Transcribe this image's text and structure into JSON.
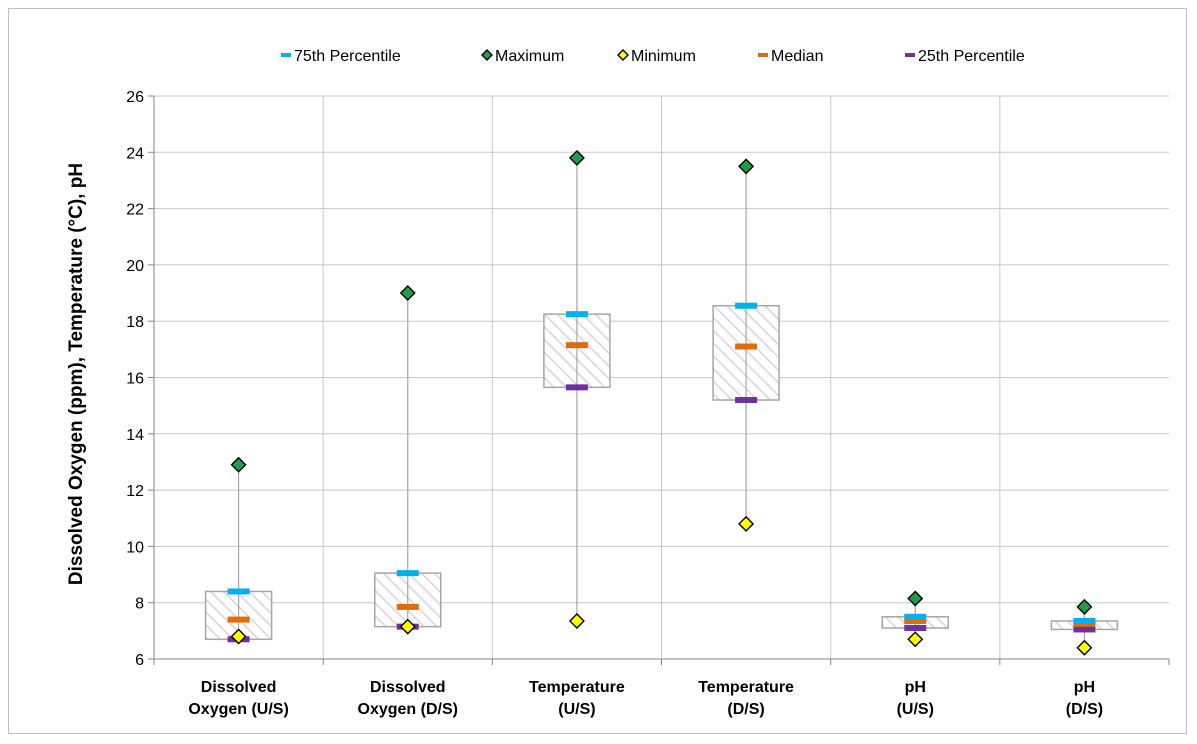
{
  "chart_data": {
    "type": "box",
    "title": "",
    "xlabel": "",
    "ylabel": "Dissolved Oxygen (ppm), Temperature (°C), pH",
    "ylim": [
      6,
      26
    ],
    "yticks": [
      6,
      8,
      10,
      12,
      14,
      16,
      18,
      20,
      22,
      24,
      26
    ],
    "grid": true,
    "legend_position": "top",
    "categories": [
      [
        "Dissolved",
        "Oxygen (U/S)"
      ],
      [
        "Dissolved",
        "Oxygen (D/S)"
      ],
      [
        "Temperature",
        "(U/S)"
      ],
      [
        "Temperature",
        "(D/S)"
      ],
      [
        "pH",
        "(U/S)"
      ],
      [
        "pH",
        "(D/S)"
      ]
    ],
    "series": [
      {
        "name": "75th Percentile",
        "marker": "dash",
        "color": "#00b0f0",
        "values": [
          8.4,
          9.05,
          18.25,
          18.55,
          7.5,
          7.35
        ]
      },
      {
        "name": "Maximum",
        "marker": "diamond",
        "color": "#1e9e4a",
        "values": [
          12.9,
          19.0,
          23.8,
          23.5,
          8.15,
          7.85
        ]
      },
      {
        "name": "Minimum",
        "marker": "diamond",
        "color": "#ffff00",
        "values": [
          6.8,
          7.15,
          7.35,
          10.8,
          6.7,
          6.4
        ]
      },
      {
        "name": "Median",
        "marker": "dash",
        "color": "#e36c0a",
        "values": [
          7.4,
          7.85,
          17.15,
          17.1,
          7.35,
          7.25
        ]
      },
      {
        "name": "25th Percentile",
        "marker": "dash",
        "color": "#7030a0",
        "values": [
          6.7,
          7.15,
          15.65,
          15.2,
          7.1,
          7.05
        ]
      }
    ]
  }
}
